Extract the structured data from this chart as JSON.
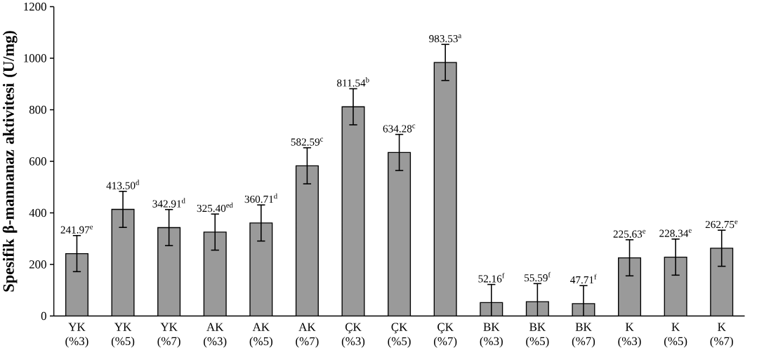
{
  "chart_data": {
    "type": "bar",
    "ylabel": "Spesifik β-mannanaz aktivitesi (U/mg)",
    "categories": [
      "YK (%3)",
      "YK (%5)",
      "YK (%7)",
      "AK (%3)",
      "AK (%5)",
      "AK (%7)",
      "ÇK (%3)",
      "ÇK (%5)",
      "ÇK (%7)",
      "BK (%3)",
      "BK (%5)",
      "BK (%7)",
      "K (%3)",
      "K (%5)",
      "K (%7)"
    ],
    "values": [
      241.97,
      413.5,
      342.91,
      325.4,
      360.71,
      582.59,
      811.54,
      634.28,
      983.53,
      52.16,
      55.59,
      47.71,
      225.63,
      228.34,
      262.75
    ],
    "errors": [
      70,
      70,
      70,
      70,
      70,
      70,
      70,
      70,
      70,
      70,
      70,
      70,
      70,
      70,
      70
    ],
    "value_labels": [
      "241.97$^{e}$",
      "413.50$^{d}$",
      "342.91$^{d}$",
      "325.40$^{ed}$",
      "360.71$^{d}$",
      "582.59$^{c}$",
      "811.54$^{b}$",
      "634.28$^{c}$",
      "983.53$^{a}$",
      "52.16$^{f}$",
      "55.59$^{f}$",
      "47.71$^{f}$",
      "225.63$^{e}$",
      "228.34$^{e}$",
      "262.75$^{e}$"
    ],
    "color": "#9a9a9a",
    "ylim": [
      0,
      1200
    ],
    "yticks": [
      0,
      200,
      400,
      600,
      800,
      1000,
      1200
    ],
    "grid": false
  }
}
